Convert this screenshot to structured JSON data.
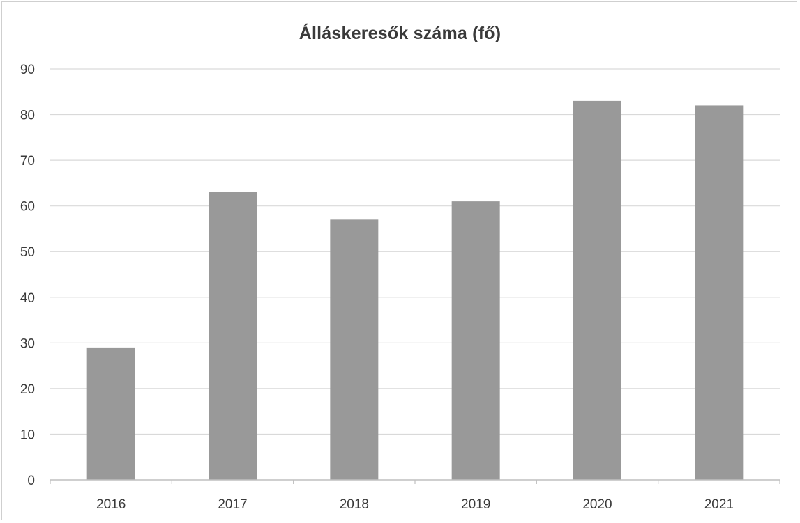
{
  "chart_data": {
    "type": "bar",
    "title": "Álláskeresők száma (fő)",
    "categories": [
      "2016",
      "2017",
      "2018",
      "2019",
      "2020",
      "2021"
    ],
    "values": [
      29,
      63,
      57,
      61,
      83,
      82
    ],
    "ylim": [
      0,
      90
    ],
    "yticks": [
      0,
      10,
      20,
      30,
      40,
      50,
      60,
      70,
      80,
      90
    ],
    "xlabel": "",
    "ylabel": "",
    "grid": true,
    "legend": "none",
    "bar_color": "#999999",
    "grid_color": "#d9d9d9"
  }
}
